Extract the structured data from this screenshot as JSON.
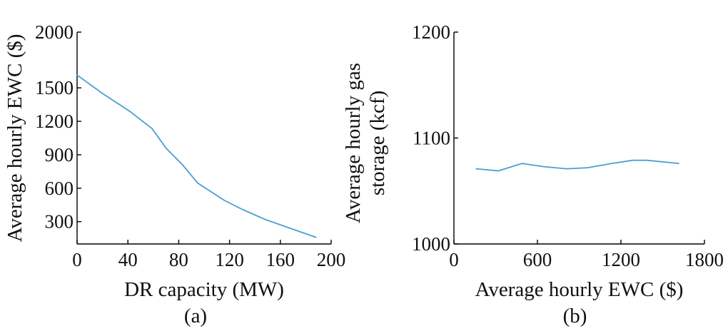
{
  "chart_data": [
    {
      "type": "line",
      "panel_label": "(a)",
      "title": "",
      "xlabel": "DR capacity (MW)",
      "ylabel": "Average hourly EWC ($)",
      "xlim": [
        0,
        200
      ],
      "ylim": [
        100,
        2000
      ],
      "xticks": [
        0,
        40,
        80,
        120,
        160,
        200
      ],
      "yticks": [
        300,
        600,
        900,
        1200,
        1500,
        2000
      ],
      "grid": false,
      "color": "#4a9fd0",
      "series": [
        {
          "x": [
            0,
            20,
            42,
            59,
            70,
            83,
            95,
            116,
            130,
            148,
            168,
            188
          ],
          "y": [
            1615,
            1450,
            1285,
            1135,
            960,
            810,
            645,
            490,
            410,
            320,
            240,
            160
          ]
        }
      ]
    },
    {
      "type": "line",
      "panel_label": "(b)",
      "title": "",
      "xlabel": "Average hourly EWC ($)",
      "ylabel": "Average hourly gas storage (kcf)",
      "ylabel_lines": [
        "Average hourly gas",
        "storage (kcf)"
      ],
      "xlim": [
        0,
        1800
      ],
      "ylim": [
        1000,
        1200
      ],
      "xticks": [
        0,
        600,
        1200,
        1800
      ],
      "yticks": [
        1000,
        1100,
        1200
      ],
      "grid": false,
      "color": "#4a9fd0",
      "series": [
        {
          "x": [
            160,
            320,
            490,
            645,
            810,
            960,
            1135,
            1285,
            1385,
            1615
          ],
          "y": [
            1071,
            1069,
            1076,
            1073,
            1071,
            1072,
            1076,
            1079,
            1079,
            1076
          ]
        }
      ]
    }
  ]
}
